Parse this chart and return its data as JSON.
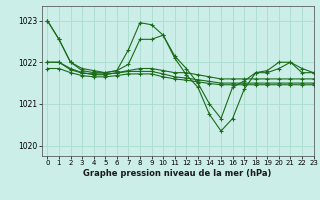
{
  "title": "Graphe pression niveau de la mer (hPa)",
  "background_color": "#cceee8",
  "grid_color": "#aaddcc",
  "line_color": "#1a6b1a",
  "xlim": [
    -0.5,
    23
  ],
  "ylim": [
    1019.75,
    1023.35
  ],
  "yticks": [
    1020,
    1021,
    1022,
    1023
  ],
  "xticks": [
    0,
    1,
    2,
    3,
    4,
    5,
    6,
    7,
    8,
    9,
    10,
    11,
    12,
    13,
    14,
    15,
    16,
    17,
    18,
    19,
    20,
    21,
    22,
    23
  ],
  "series": [
    [
      1023.0,
      1022.55,
      1022.0,
      1021.85,
      1021.8,
      1021.75,
      1021.8,
      1022.3,
      1022.95,
      1022.9,
      1022.65,
      1022.1,
      1021.7,
      1021.4,
      1020.75,
      1020.35,
      1020.65,
      1021.35,
      1021.75,
      1021.8,
      1022.0,
      1022.0,
      1021.75,
      1021.75
    ],
    [
      1023.0,
      1022.55,
      1022.0,
      1021.8,
      1021.75,
      1021.75,
      1021.8,
      1021.95,
      1022.55,
      1022.55,
      1022.65,
      1022.15,
      1021.85,
      1021.5,
      1021.0,
      1020.65,
      1021.4,
      1021.55,
      1021.75,
      1021.75,
      1021.85,
      1022.0,
      1021.85,
      1021.75
    ],
    [
      1022.0,
      1022.0,
      1021.85,
      1021.75,
      1021.7,
      1021.7,
      1021.75,
      1021.8,
      1021.85,
      1021.85,
      1021.8,
      1021.75,
      1021.75,
      1021.7,
      1021.65,
      1021.6,
      1021.6,
      1021.6,
      1021.6,
      1021.6,
      1021.6,
      1021.6,
      1021.6,
      1021.6
    ],
    [
      1022.0,
      1022.0,
      1021.82,
      1021.74,
      1021.72,
      1021.72,
      1021.74,
      1021.78,
      1021.78,
      1021.78,
      1021.72,
      1021.65,
      1021.62,
      1021.58,
      1021.54,
      1021.5,
      1021.5,
      1021.5,
      1021.5,
      1021.5,
      1021.5,
      1021.5,
      1021.5,
      1021.5
    ],
    [
      1021.85,
      1021.85,
      1021.75,
      1021.68,
      1021.65,
      1021.65,
      1021.68,
      1021.72,
      1021.72,
      1021.72,
      1021.65,
      1021.6,
      1021.57,
      1021.53,
      1021.49,
      1021.46,
      1021.46,
      1021.46,
      1021.46,
      1021.46,
      1021.46,
      1021.46,
      1021.46,
      1021.46
    ]
  ]
}
